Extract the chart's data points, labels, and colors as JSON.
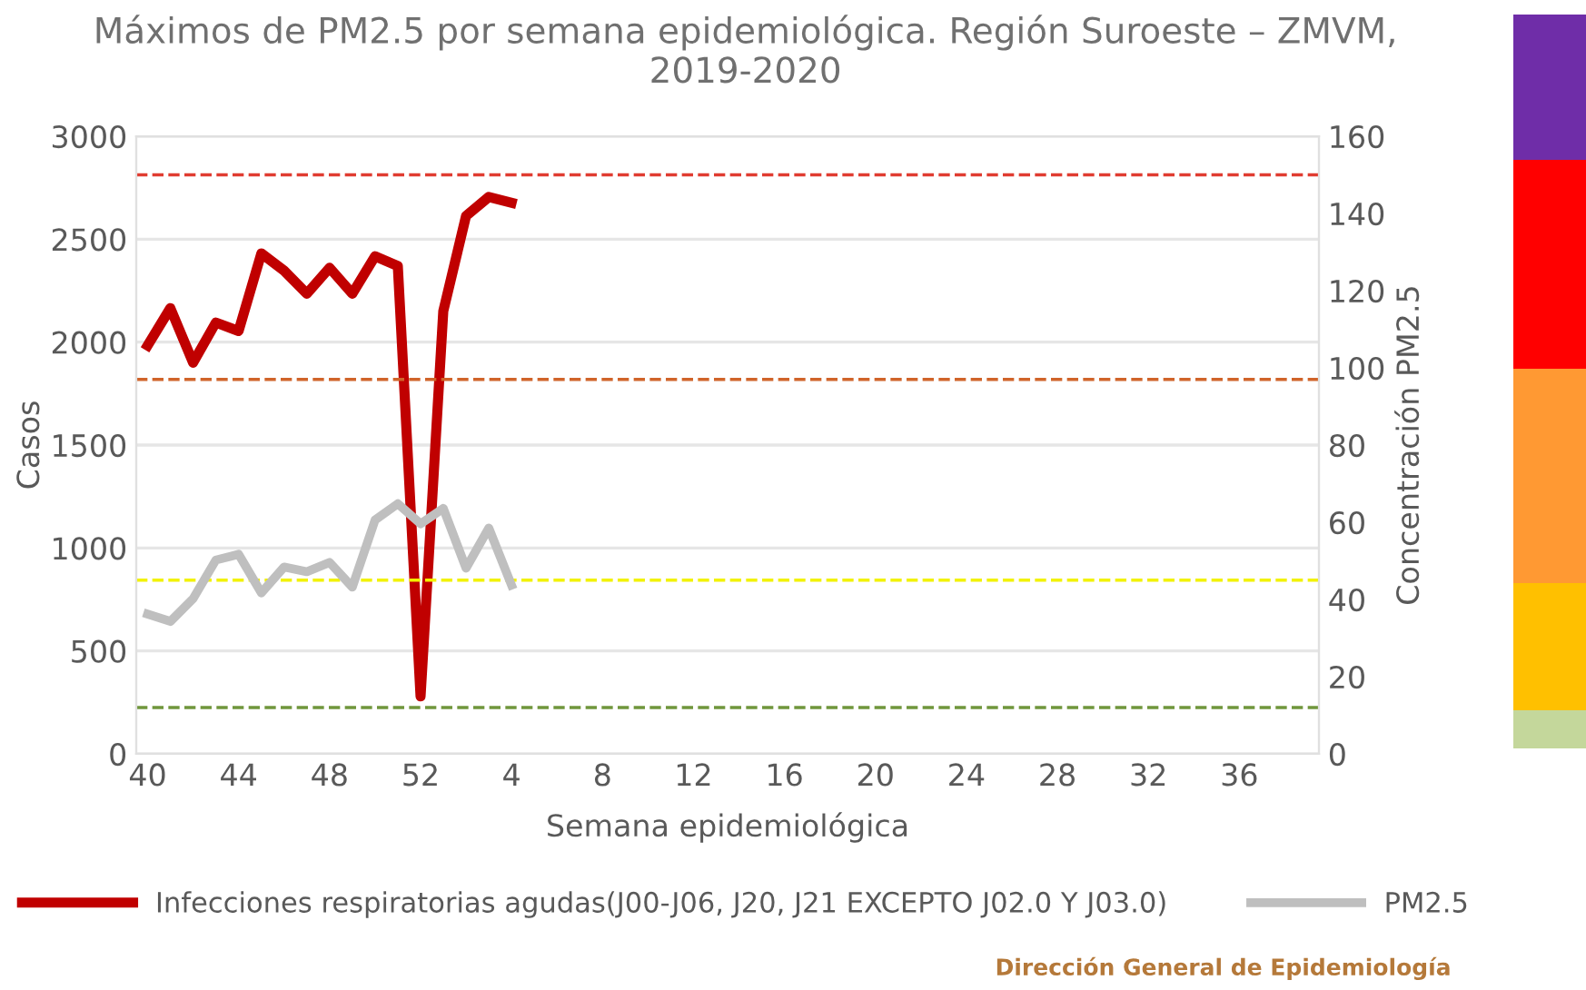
{
  "chart_data": {
    "type": "line",
    "title": "Máximos de PM2.5 por semana epidemiológica. Región Suroeste – ZMVM, 2019-2020",
    "xlabel": "Semana epidemiológica",
    "ylabel": "Casos",
    "y2label": "Concentración PM2.5",
    "categories": [
      "40",
      null,
      null,
      null,
      "44",
      null,
      null,
      null,
      "48",
      null,
      null,
      null,
      "52",
      null,
      null,
      null,
      "4",
      null,
      null,
      null,
      "8",
      null,
      null,
      null,
      "12",
      null,
      null,
      null,
      "16",
      null,
      null,
      null,
      "20",
      null,
      null,
      null,
      "24",
      null,
      null,
      null,
      "28",
      null,
      null,
      null,
      "32",
      null,
      null,
      null,
      "36",
      null,
      null,
      null
    ],
    "series": [
      {
        "name": "Infecciones respiratorias agudas(J00-J06, J20, J21 EXCEPTO J02.0 Y J03.0)",
        "color": "#c00000",
        "values": [
          1984,
          2165,
          1900,
          2095,
          2054,
          2431,
          2347,
          2235,
          2361,
          2235,
          2417,
          2370,
          279,
          2151,
          2613,
          2705,
          2677,
          null,
          null,
          null,
          null,
          null,
          null,
          null,
          null,
          null,
          null,
          null,
          null,
          null,
          null,
          null,
          null,
          null,
          null,
          null,
          null,
          null,
          null,
          null,
          null,
          null,
          null,
          null,
          null,
          null,
          null,
          null,
          null,
          null,
          null,
          null
        ]
      },
      {
        "name": "PM2.5",
        "color": "#bfbfbf",
        "axis": "y2",
        "values": [
          36.2,
          34.3,
          40.2,
          50.2,
          51.7,
          41.7,
          48.4,
          47.2,
          49.6,
          43.2,
          60.6,
          64.8,
          59.6,
          63.6,
          48.1,
          58.5,
          43.7,
          null,
          null,
          null,
          null,
          null,
          null,
          null,
          null,
          null,
          null,
          null,
          null,
          null,
          null,
          null,
          null,
          null,
          null,
          null,
          null,
          null,
          null,
          null,
          null,
          null,
          null,
          null,
          null,
          null,
          null,
          null,
          null,
          null,
          null,
          null
        ]
      }
    ],
    "ylim": [
      0,
      3000
    ],
    "yticks": [
      0,
      500,
      1000,
      1500,
      2000,
      2500,
      3000
    ],
    "y2lim": [
      0,
      160
    ],
    "y2ticks": [
      0,
      20,
      40,
      60,
      80,
      100,
      120,
      140,
      160
    ],
    "ref_lines": [
      {
        "axis": "y2",
        "value": 150,
        "color": "#e03c31",
        "line_style": "dashed"
      },
      {
        "axis": "y2",
        "value": 97,
        "color": "#d0642a",
        "line_style": "dashed"
      },
      {
        "axis": "y2",
        "value": 45,
        "color": "#f2f200",
        "line_style": "dashed"
      },
      {
        "axis": "y2",
        "value": 12,
        "color": "#70963c",
        "line_style": "dashed"
      }
    ],
    "annotations": [
      "Dirección General de Epidemiología"
    ],
    "grid": "y",
    "legend": "bottom",
    "line_style": "solid",
    "marker": "none"
  }
}
